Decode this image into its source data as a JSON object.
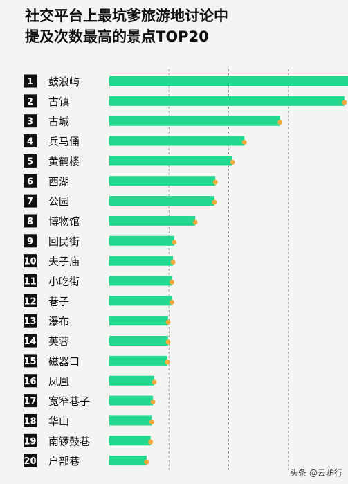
{
  "title_lines": [
    "社交平台上最坑爹旅游地讨论中",
    "提及次数最高的景点TOP20"
  ],
  "watermark": "头条 @云驴行",
  "colors": {
    "bar": "#22d98f",
    "dot": "#f2a93b",
    "rank_bg": "#111111",
    "rank_text": "#ffffff",
    "grid": "#9a9a9a"
  },
  "chart_data": {
    "type": "bar",
    "orientation": "horizontal",
    "title": "社交平台上最坑爹旅游地讨论中提及次数最高的景点TOP20",
    "ranks": [
      "1",
      "2",
      "3",
      "4",
      "5",
      "6",
      "7",
      "8",
      "9",
      "10",
      "11",
      "12",
      "13",
      "14",
      "15",
      "16",
      "17",
      "18",
      "19",
      "20"
    ],
    "categories": [
      "鼓浪屿",
      "古镇",
      "古城",
      "兵马俑",
      "黄鹤楼",
      "西湖",
      "公园",
      "博物馆",
      "回民街",
      "夫子庙",
      "小吃街",
      "巷子",
      "瀑布",
      "芙蓉",
      "磁器口",
      "凤凰",
      "宽窄巷子",
      "华山",
      "南锣鼓巷",
      "户部巷"
    ],
    "values": [
      100,
      98.5,
      71.5,
      56.6,
      51.6,
      44.4,
      44.0,
      36.0,
      27.2,
      26.7,
      26.2,
      26.2,
      24.6,
      24.6,
      24.3,
      18.8,
      18.3,
      17.8,
      17.3,
      15.6
    ],
    "xlim": [
      0,
      100
    ],
    "grid": true,
    "gridlines": 4,
    "legend": "none"
  }
}
